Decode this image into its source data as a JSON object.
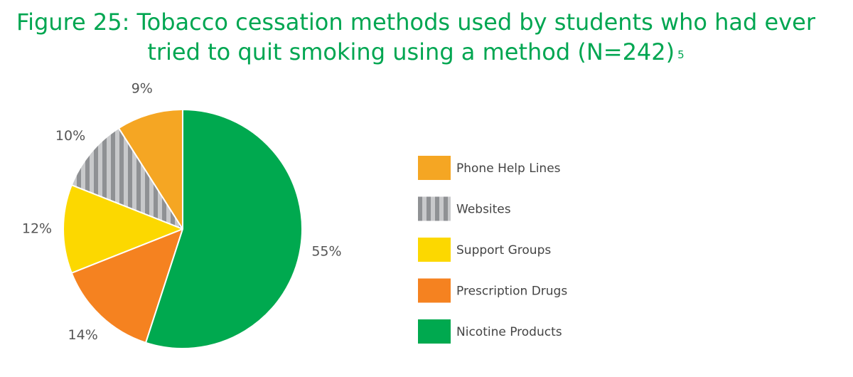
{
  "chart_data": {
    "type": "pie",
    "title": "Figure 25: Tobacco cessation methods used by students who had ever tried to quit smoking using a method (N=242)",
    "title_footnote": "5",
    "categories": [
      "Phone Help Lines",
      "Websites",
      "Support Groups",
      "Prescription Drugs",
      "Nicotine Products"
    ],
    "values": [
      9,
      10,
      12,
      14,
      55
    ],
    "value_labels": [
      "9%",
      "10%",
      "12%",
      "14%",
      "55%"
    ],
    "colors": [
      "#f5a623",
      "#a7a9ac",
      "#fcd800",
      "#f58220",
      "#00a94f"
    ],
    "patterns": [
      null,
      "stripes",
      null,
      null,
      null
    ],
    "legend": "right"
  }
}
